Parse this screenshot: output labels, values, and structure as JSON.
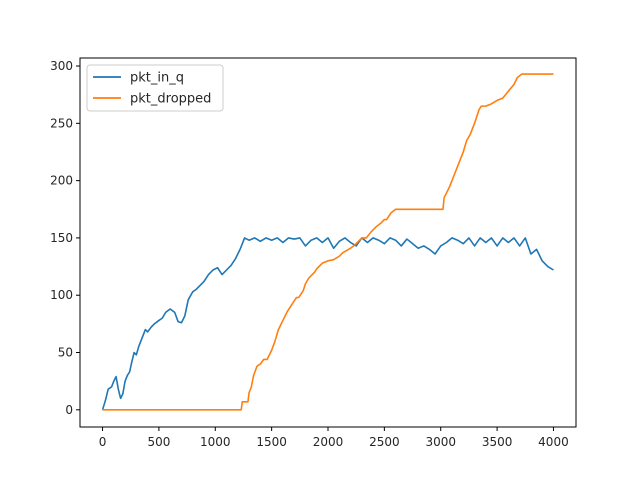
{
  "chart_data": {
    "type": "line",
    "title": "",
    "xlabel": "",
    "ylabel": "",
    "xlim": [
      -200,
      4200
    ],
    "ylim": [
      -15,
      307
    ],
    "xticks": [
      0,
      500,
      1000,
      1500,
      2000,
      2500,
      3000,
      3500,
      4000
    ],
    "yticks": [
      0,
      50,
      100,
      150,
      200,
      250,
      300
    ],
    "grid": false,
    "legend": "upper left",
    "series": [
      {
        "name": "pkt_in_q",
        "color": "#1f77b4",
        "x": [
          0,
          25,
          50,
          80,
          100,
          120,
          140,
          160,
          180,
          200,
          220,
          240,
          260,
          280,
          300,
          320,
          340,
          360,
          380,
          400,
          430,
          460,
          500,
          530,
          560,
          600,
          640,
          670,
          700,
          730,
          760,
          800,
          830,
          860,
          900,
          940,
          980,
          1020,
          1060,
          1100,
          1140,
          1180,
          1220,
          1240,
          1260,
          1300,
          1350,
          1400,
          1450,
          1500,
          1550,
          1600,
          1650,
          1700,
          1750,
          1800,
          1850,
          1900,
          1950,
          2000,
          2050,
          2100,
          2150,
          2200,
          2250,
          2300,
          2350,
          2400,
          2450,
          2500,
          2550,
          2600,
          2650,
          2700,
          2750,
          2800,
          2850,
          2900,
          2950,
          3000,
          3050,
          3100,
          3150,
          3200,
          3250,
          3300,
          3350,
          3400,
          3450,
          3500,
          3550,
          3600,
          3650,
          3700,
          3750,
          3800,
          3850,
          3900,
          3950,
          4000
        ],
        "y": [
          0,
          8,
          18,
          20,
          25,
          29,
          18,
          10,
          14,
          25,
          30,
          33,
          42,
          50,
          48,
          55,
          60,
          65,
          70,
          68,
          72,
          75,
          78,
          80,
          85,
          88,
          85,
          77,
          76,
          82,
          96,
          103,
          105,
          108,
          112,
          118,
          122,
          124,
          118,
          122,
          126,
          132,
          140,
          145,
          150,
          148,
          150,
          147,
          150,
          148,
          150,
          146,
          150,
          149,
          150,
          143,
          148,
          150,
          146,
          150,
          141,
          147,
          150,
          146,
          143,
          150,
          146,
          150,
          148,
          145,
          150,
          148,
          143,
          149,
          145,
          141,
          143,
          140,
          136,
          143,
          146,
          150,
          148,
          145,
          150,
          143,
          150,
          146,
          150,
          143,
          150,
          146,
          150,
          143,
          150,
          136,
          140,
          130,
          125,
          122
        ]
      },
      {
        "name": "pkt_dropped",
        "color": "#ff7f0e",
        "x": [
          0,
          1230,
          1240,
          1290,
          1300,
          1320,
          1340,
          1370,
          1400,
          1430,
          1460,
          1500,
          1530,
          1560,
          1600,
          1640,
          1680,
          1720,
          1740,
          1780,
          1800,
          1830,
          1860,
          1880,
          1900,
          1950,
          2000,
          2050,
          2100,
          2130,
          2200,
          2240,
          2300,
          2340,
          2380,
          2430,
          2470,
          2500,
          2520,
          2560,
          2600,
          2650,
          2700,
          2740,
          2780,
          2800,
          3020,
          3030,
          3080,
          3120,
          3160,
          3200,
          3230,
          3260,
          3300,
          3340,
          3360,
          3400,
          3450,
          3500,
          3550,
          3600,
          3650,
          3680,
          3720,
          3740,
          4000
        ],
        "y": [
          0,
          0,
          7,
          7,
          15,
          20,
          30,
          38,
          40,
          44,
          44,
          52,
          60,
          70,
          78,
          86,
          92,
          98,
          98,
          104,
          110,
          115,
          118,
          120,
          123,
          128,
          130,
          131,
          134,
          137,
          141,
          144,
          150,
          150,
          155,
          160,
          163,
          166,
          166,
          172,
          175,
          175,
          175,
          175,
          175,
          175,
          175,
          185,
          195,
          205,
          215,
          225,
          235,
          240,
          250,
          262,
          265,
          265,
          267,
          270,
          272,
          278,
          284,
          290,
          293,
          293,
          293
        ]
      }
    ]
  }
}
